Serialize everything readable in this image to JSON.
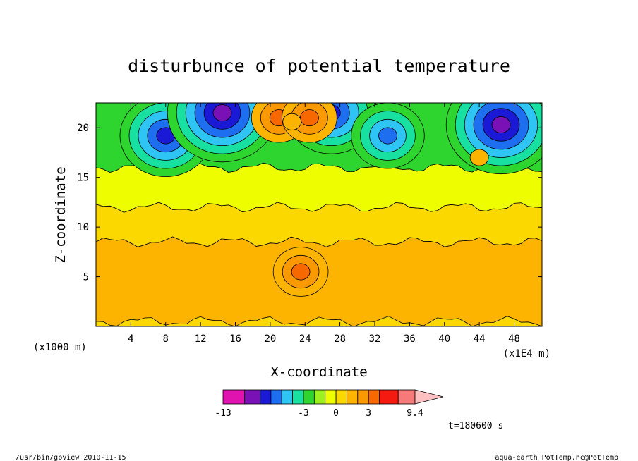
{
  "chart_data": {
    "type": "heatmap",
    "title": "disturbunce of potential temperature",
    "xlabel": "X-coordinate",
    "ylabel": "Z-coordinate",
    "x_unit": "(x1E4 m)",
    "y_unit": "(x1000 m)",
    "xlim": [
      0,
      51.2
    ],
    "ylim": [
      0,
      22.5
    ],
    "x_ticks": [
      4,
      8,
      12,
      16,
      20,
      24,
      28,
      32,
      36,
      40,
      44,
      48
    ],
    "y_ticks": [
      5,
      10,
      15,
      20
    ],
    "time_label": "t=180600 s",
    "colorbar": {
      "bins": [
        {
          "from": -13,
          "to": -9,
          "color": "#e012b0"
        },
        {
          "from": -9,
          "to": -7,
          "color": "#7a11b6"
        },
        {
          "from": -7,
          "to": -6,
          "color": "#1a1ad6"
        },
        {
          "from": -6,
          "to": -5,
          "color": "#1e6ef0"
        },
        {
          "from": -5,
          "to": -4,
          "color": "#2ec4f4"
        },
        {
          "from": -4,
          "to": -3,
          "color": "#17e0a0"
        },
        {
          "from": -3,
          "to": -2,
          "color": "#2ed52e"
        },
        {
          "from": -2,
          "to": -1,
          "color": "#9cf020"
        },
        {
          "from": -1,
          "to": 0,
          "color": "#eefe00"
        },
        {
          "from": 0,
          "to": 1,
          "color": "#fbd800"
        },
        {
          "from": 1,
          "to": 2,
          "color": "#fcb400"
        },
        {
          "from": 2,
          "to": 3,
          "color": "#fa9a00"
        },
        {
          "from": 3,
          "to": 4,
          "color": "#f86800"
        },
        {
          "from": 4,
          "to": 7,
          "color": "#f51a10"
        },
        {
          "from": 7,
          "to": 9.4,
          "color": "#f77a7a"
        },
        {
          "from": 9.4,
          "to": 11,
          "color": "#fcc0c0"
        }
      ],
      "labels": [
        "-13",
        "-3",
        "0",
        "3",
        "9.4"
      ],
      "label_values": [
        -13,
        -3,
        0,
        3,
        9.4
      ]
    },
    "field_layers": [
      {
        "value": 1.5,
        "z_from": 0.5,
        "z_to": 8.5,
        "description_value": "orange band"
      },
      {
        "value": 0.5,
        "z_from": 8.5,
        "z_to": 12.0
      },
      {
        "value": -0.5,
        "z_from": 12.0,
        "z_to": 16.0
      },
      {
        "value": -2.5,
        "z_from": 16.0,
        "z_to": 22.5
      }
    ],
    "features": [
      {
        "x": 8.0,
        "z": 19.2,
        "value": -7
      },
      {
        "x": 14.5,
        "z": 21.5,
        "value": -8
      },
      {
        "x": 27.0,
        "z": 21.5,
        "value": -7
      },
      {
        "x": 33.5,
        "z": 19.2,
        "value": -6
      },
      {
        "x": 46.5,
        "z": 20.3,
        "value": -8
      },
      {
        "x": 21.0,
        "z": 21.0,
        "value": 4
      },
      {
        "x": 24.5,
        "z": 21.0,
        "value": 4
      },
      {
        "x": 22.5,
        "z": 20.6,
        "value": 2
      },
      {
        "x": 44.0,
        "z": 17.0,
        "value": 1.5
      },
      {
        "x": 23.5,
        "z": 5.5,
        "value": 4
      }
    ]
  },
  "footer": {
    "left": "/usr/bin/gpview   2010-11-15",
    "right": "aqua-earth_PotTemp.nc@PotTemp"
  }
}
